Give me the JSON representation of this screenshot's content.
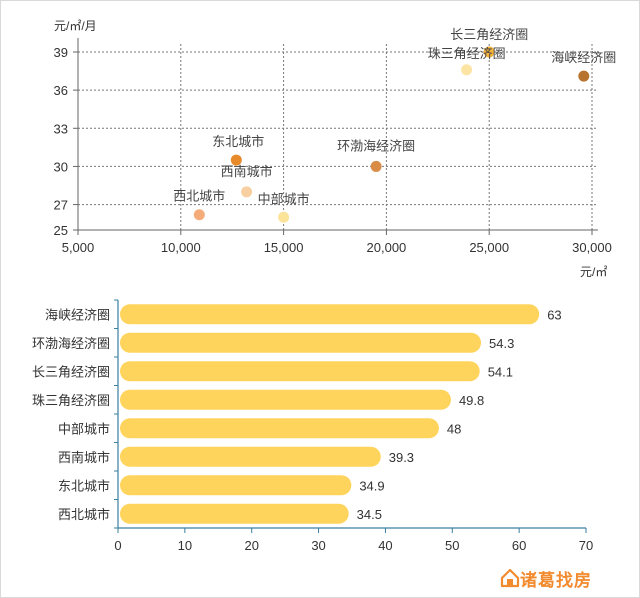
{
  "chart_data": [
    {
      "type": "scatter",
      "x_unit": "元/㎡",
      "y_unit": "元/㎡/月",
      "xlim": [
        5000,
        30000
      ],
      "ylim": [
        25,
        39
      ],
      "x_ticks": [
        5000,
        10000,
        15000,
        20000,
        25000,
        30000
      ],
      "y_ticks": [
        25,
        27,
        30,
        33,
        36,
        39
      ],
      "x_tick_labels": [
        "5,000",
        "10,000",
        "15,000",
        "20,000",
        "25,000",
        "30,000"
      ],
      "y_tick_labels": [
        "25",
        "27",
        "30",
        "33",
        "36",
        "39"
      ],
      "grid": true,
      "points": [
        {
          "label": "长三角经济圈",
          "x": 25000,
          "y": 39.0,
          "color": "#f5b43c"
        },
        {
          "label": "珠三角经济圈",
          "x": 23900,
          "y": 37.6,
          "color": "#fce4a4"
        },
        {
          "label": "海峡经济圈",
          "x": 29600,
          "y": 37.1,
          "color": "#b8742e"
        },
        {
          "label": "环渤海经济圈",
          "x": 19500,
          "y": 30.0,
          "color": "#d88c46"
        },
        {
          "label": "东北城市",
          "x": 12700,
          "y": 30.5,
          "color": "#e8892a"
        },
        {
          "label": "西南城市",
          "x": 13200,
          "y": 28.0,
          "color": "#f7cfa0"
        },
        {
          "label": "西北城市",
          "x": 10900,
          "y": 26.2,
          "color": "#f4ad7a"
        },
        {
          "label": "中部城市",
          "x": 15000,
          "y": 26.0,
          "color": "#fbe39a"
        }
      ]
    },
    {
      "type": "bar",
      "orientation": "horizontal",
      "categories": [
        "海峡经济圈",
        "环渤海经济圈",
        "长三角经济圈",
        "珠三角经济圈",
        "中部城市",
        "西南城市",
        "东北城市",
        "西北城市"
      ],
      "values": [
        63,
        54.3,
        54.1,
        49.8,
        48,
        39.3,
        34.9,
        34.5
      ],
      "value_labels": [
        "63",
        "54.3",
        "54.1",
        "49.8",
        "48",
        "39.3",
        "34.9",
        "34.5"
      ],
      "xlim": [
        0,
        70
      ],
      "x_ticks": [
        0,
        10,
        20,
        30,
        40,
        50,
        60,
        70
      ],
      "x_tick_labels": [
        "0",
        "10",
        "20",
        "30",
        "40",
        "50",
        "60",
        "70"
      ],
      "bar_color": "#ffd45c"
    }
  ],
  "logo": {
    "text": "诸葛找房",
    "color": "#f28a2e"
  }
}
